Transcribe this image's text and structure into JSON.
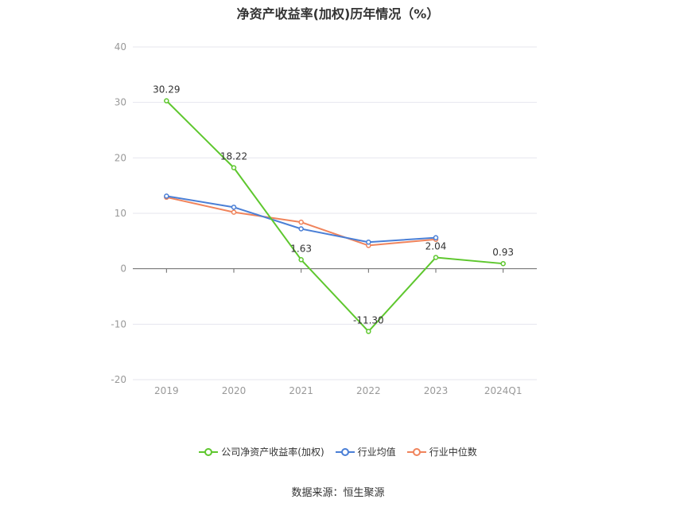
{
  "title": "净资产收益率(加权)历年情况（%）",
  "source": "数据来源：恒生聚源",
  "chart_data": {
    "type": "line",
    "categories": [
      "2019",
      "2020",
      "2021",
      "2022",
      "2023",
      "2024Q1"
    ],
    "ylim": [
      -20,
      40
    ],
    "yticks": [
      -20,
      -10,
      0,
      10,
      20,
      30,
      40
    ],
    "grid": true,
    "legend_position": "bottom",
    "series": [
      {
        "name": "公司净资产收益率(加权)",
        "color": "#5ec72e",
        "values": [
          30.29,
          18.22,
          1.63,
          -11.3,
          2.04,
          0.93
        ],
        "labels": [
          "30.29",
          "18.22",
          "1.63",
          "-11.30",
          "2.04",
          "0.93"
        ]
      },
      {
        "name": "行业均值",
        "color": "#4a7fd6",
        "values": [
          13.1,
          11.1,
          7.2,
          4.8,
          5.6,
          null
        ]
      },
      {
        "name": "行业中位数",
        "color": "#f0845c",
        "values": [
          12.9,
          10.2,
          8.4,
          4.2,
          5.3,
          null
        ]
      }
    ]
  }
}
